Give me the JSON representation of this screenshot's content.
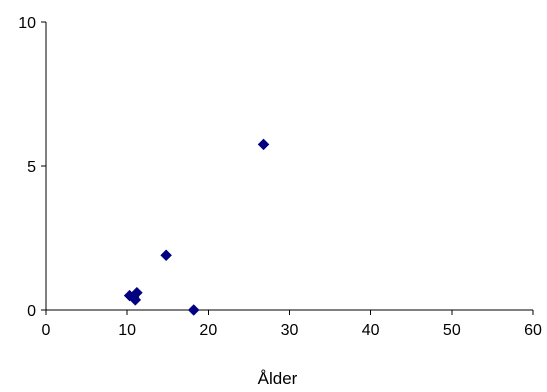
{
  "chart_data": {
    "type": "scatter",
    "title": "",
    "xlabel": "Ålder",
    "ylabel": "",
    "xlim": [
      0,
      60
    ],
    "ylim": [
      0,
      10
    ],
    "x_ticks": [
      0,
      10,
      20,
      30,
      40,
      50,
      60
    ],
    "y_ticks": [
      0,
      5,
      10
    ],
    "grid": false,
    "legend": "none",
    "marker": "diamond",
    "marker_color": "#000080",
    "series": [
      {
        "points": [
          {
            "x": 10.3,
            "y": 0.5
          },
          {
            "x": 10.8,
            "y": 0.45
          },
          {
            "x": 11.2,
            "y": 0.6
          },
          {
            "x": 11.0,
            "y": 0.35
          },
          {
            "x": 14.8,
            "y": 1.9
          },
          {
            "x": 18.2,
            "y": 0.0
          },
          {
            "x": 26.8,
            "y": 5.75
          }
        ]
      }
    ]
  }
}
